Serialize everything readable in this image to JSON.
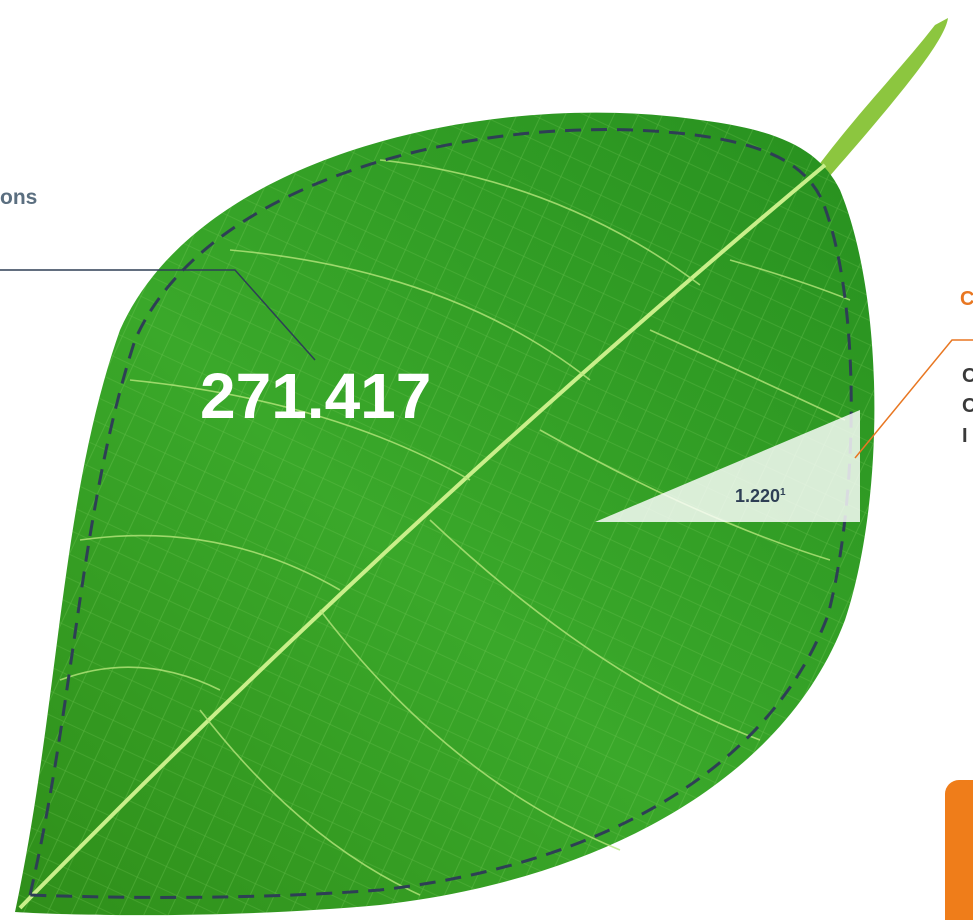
{
  "labels": {
    "left_caption": "ons",
    "main_value": "271.417",
    "wedge_value": "1.220",
    "wedge_footnote": "1",
    "right_heading": "C",
    "right_lines": [
      "C",
      "C",
      "I"
    ]
  }
}
